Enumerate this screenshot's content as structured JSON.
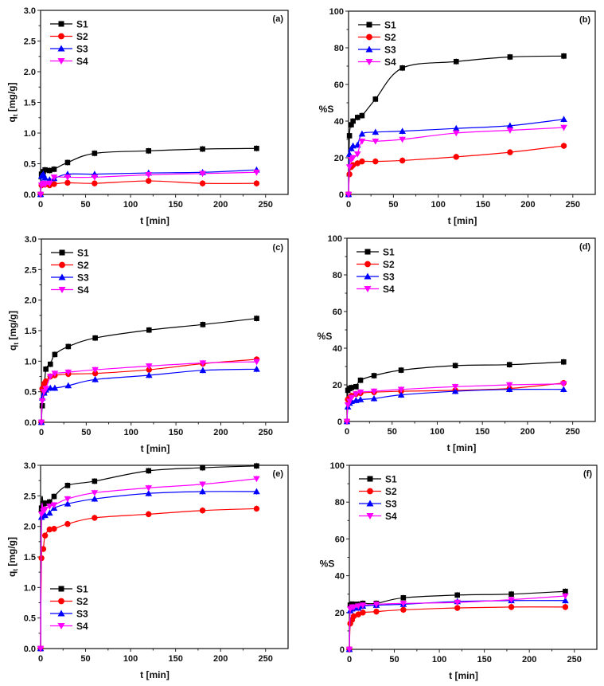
{
  "chart_data": [
    {
      "panel": "(a)",
      "type": "line",
      "xlabel": "t [min]",
      "ylabel": "q",
      "ylabel_sub": "t",
      "ylabel_unit": "[mg/g]",
      "xlim": [
        0,
        275
      ],
      "ylim": [
        0,
        3.0
      ],
      "xticks": [
        0,
        50,
        100,
        150,
        200,
        250
      ],
      "yticks": [
        "0.0",
        "0.5",
        "1.0",
        "1.5",
        "2.0",
        "2.5",
        "3.0"
      ],
      "legend": "top-left",
      "grid": false,
      "x": [
        0,
        1,
        3,
        5,
        10,
        15,
        30,
        60,
        120,
        180,
        240
      ],
      "series": [
        {
          "name": "S1",
          "values": [
            0,
            0.33,
            0.37,
            0.4,
            0.39,
            0.41,
            0.52,
            0.67,
            0.71,
            0.74,
            0.75
          ]
        },
        {
          "name": "S2",
          "values": [
            0,
            0.15,
            0.17,
            0.16,
            0.15,
            0.17,
            0.19,
            0.18,
            0.22,
            0.18,
            0.18
          ]
        },
        {
          "name": "S3",
          "values": [
            0,
            0.3,
            0.33,
            0.27,
            0.24,
            0.26,
            0.33,
            0.33,
            0.35,
            0.36,
            0.4
          ]
        },
        {
          "name": "S4",
          "values": [
            0,
            0.15,
            0.18,
            0.16,
            0.18,
            0.28,
            0.28,
            0.28,
            0.32,
            0.34,
            0.36
          ]
        }
      ]
    },
    {
      "panel": "(b)",
      "type": "line",
      "xlabel": "t [min]",
      "ylabel": "%S",
      "ylabel_sub": "",
      "ylabel_unit": "",
      "xlim": [
        0,
        275
      ],
      "ylim": [
        0,
        100
      ],
      "xticks": [
        0,
        50,
        100,
        150,
        200,
        250
      ],
      "yticks": [
        "0",
        "20",
        "40",
        "60",
        "80",
        "100"
      ],
      "legend": "top-left",
      "grid": false,
      "x": [
        0,
        1,
        3,
        5,
        10,
        15,
        30,
        60,
        120,
        180,
        240
      ],
      "series": [
        {
          "name": "S1",
          "values": [
            0,
            32,
            38,
            40,
            42,
            43,
            52,
            69,
            72.5,
            75,
            75.5
          ]
        },
        {
          "name": "S2",
          "values": [
            0,
            11,
            15,
            16,
            17,
            18,
            18,
            18.5,
            20.5,
            23,
            26.5
          ]
        },
        {
          "name": "S3",
          "values": [
            0,
            22,
            25,
            26.5,
            27,
            33,
            34,
            34.5,
            36,
            37.5,
            41
          ]
        },
        {
          "name": "S4",
          "values": [
            0,
            15,
            19,
            20,
            22,
            29,
            29,
            30,
            33.5,
            35,
            36.5
          ]
        }
      ]
    },
    {
      "panel": "(c)",
      "type": "line",
      "xlabel": "t [min]",
      "ylabel": "q",
      "ylabel_sub": "t",
      "ylabel_unit": "[mg/g]",
      "xlim": [
        0,
        275
      ],
      "ylim": [
        0,
        3.0
      ],
      "xticks": [
        0,
        50,
        100,
        150,
        200,
        250
      ],
      "yticks": [
        "0.0",
        "0.5",
        "1.0",
        "1.5",
        "2.0",
        "2.5",
        "3.0"
      ],
      "legend": "top-left",
      "grid": false,
      "x": [
        0,
        1,
        3,
        5,
        10,
        15,
        30,
        60,
        120,
        180,
        240
      ],
      "series": [
        {
          "name": "S1",
          "values": [
            0,
            0.27,
            0.5,
            0.87,
            0.95,
            1.11,
            1.24,
            1.38,
            1.51,
            1.6,
            1.7
          ]
        },
        {
          "name": "S2",
          "values": [
            0,
            0.55,
            0.63,
            0.67,
            0.75,
            0.77,
            0.79,
            0.8,
            0.86,
            0.96,
            1.03
          ]
        },
        {
          "name": "S3",
          "values": [
            0,
            0.4,
            0.48,
            0.53,
            0.56,
            0.56,
            0.6,
            0.7,
            0.77,
            0.85,
            0.87
          ]
        },
        {
          "name": "S4",
          "values": [
            0,
            0.35,
            0.5,
            0.55,
            0.75,
            0.8,
            0.82,
            0.86,
            0.92,
            0.97,
            0.99
          ]
        }
      ]
    },
    {
      "panel": "(d)",
      "type": "line",
      "xlabel": "t [min]",
      "ylabel": "%S",
      "ylabel_sub": "",
      "ylabel_unit": "",
      "xlim": [
        0,
        275
      ],
      "ylim": [
        0,
        100
      ],
      "xticks": [
        0,
        50,
        100,
        150,
        200,
        250
      ],
      "yticks": [
        "0",
        "20",
        "40",
        "60",
        "80",
        "100"
      ],
      "legend": "top-left",
      "grid": false,
      "x": [
        0,
        1,
        3,
        5,
        10,
        15,
        30,
        60,
        120,
        180,
        240
      ],
      "series": [
        {
          "name": "S1",
          "values": [
            0,
            17,
            18,
            18.5,
            19,
            22.5,
            25,
            28,
            30.5,
            31,
            32.5
          ]
        },
        {
          "name": "S2",
          "values": [
            0,
            12,
            13,
            14,
            15,
            15.5,
            16,
            16.5,
            17,
            18,
            21
          ]
        },
        {
          "name": "S3",
          "values": [
            0,
            8,
            10,
            11,
            11.5,
            12,
            12.5,
            14.5,
            16.5,
            17.5,
            17.5
          ]
        },
        {
          "name": "S4",
          "values": [
            0,
            9,
            11,
            13,
            15,
            16,
            16.5,
            17.5,
            19,
            20,
            20.5
          ]
        }
      ]
    },
    {
      "panel": "(e)",
      "type": "line",
      "xlabel": "t [min]",
      "ylabel": "q",
      "ylabel_sub": "t",
      "ylabel_unit": "[mg/g]",
      "xlim": [
        0,
        275
      ],
      "ylim": [
        0,
        3.0
      ],
      "xticks": [
        0,
        50,
        100,
        150,
        200,
        250
      ],
      "yticks": [
        "0.0",
        "0.5",
        "1.0",
        "1.5",
        "2.0",
        "2.5",
        "3.0"
      ],
      "legend": "bottom-left",
      "grid": false,
      "x": [
        0,
        1,
        3,
        5,
        10,
        15,
        30,
        60,
        120,
        180,
        240
      ],
      "series": [
        {
          "name": "S1",
          "values": [
            0,
            2.3,
            2.37,
            2.38,
            2.4,
            2.49,
            2.67,
            2.74,
            2.91,
            2.96,
            2.99
          ]
        },
        {
          "name": "S2",
          "values": [
            0,
            1.48,
            1.63,
            1.85,
            1.95,
            1.96,
            2.04,
            2.14,
            2.2,
            2.26,
            2.29
          ]
        },
        {
          "name": "S3",
          "values": [
            0,
            2.15,
            2.18,
            2.18,
            2.22,
            2.3,
            2.37,
            2.45,
            2.54,
            2.57,
            2.57
          ]
        },
        {
          "name": "S4",
          "values": [
            0,
            2.2,
            2.25,
            2.28,
            2.33,
            2.35,
            2.45,
            2.55,
            2.63,
            2.69,
            2.78
          ]
        }
      ]
    },
    {
      "panel": "(f)",
      "type": "line",
      "xlabel": "t [min]",
      "ylabel": "%S",
      "ylabel_sub": "",
      "ylabel_unit": "",
      "xlim": [
        0,
        275
      ],
      "ylim": [
        0,
        100
      ],
      "xticks": [
        0,
        50,
        100,
        150,
        200,
        250
      ],
      "yticks": [
        "0",
        "20",
        "40",
        "60",
        "80",
        "100"
      ],
      "legend": "top-left",
      "grid": false,
      "x": [
        0,
        1,
        3,
        5,
        10,
        15,
        30,
        60,
        120,
        180,
        240
      ],
      "series": [
        {
          "name": "S1",
          "values": [
            0,
            24,
            24.5,
            24.5,
            24.5,
            25,
            25,
            28,
            29.5,
            30,
            31.5
          ]
        },
        {
          "name": "S2",
          "values": [
            0,
            14,
            16,
            18,
            19,
            20,
            20.5,
            21.5,
            22.5,
            23,
            23
          ]
        },
        {
          "name": "S3",
          "values": [
            0,
            21,
            22,
            22.5,
            22.5,
            23.5,
            24,
            24.5,
            26,
            26.5,
            26.5
          ]
        },
        {
          "name": "S4",
          "values": [
            0,
            22,
            23,
            23,
            23.5,
            24,
            24.5,
            25,
            25.5,
            27,
            29
          ]
        }
      ]
    }
  ],
  "series_style": [
    {
      "color": "#000000",
      "marker": "square"
    },
    {
      "color": "#ff0000",
      "marker": "circle"
    },
    {
      "color": "#0000ff",
      "marker": "triangle-up"
    },
    {
      "color": "#ff00ff",
      "marker": "triangle-down"
    }
  ]
}
